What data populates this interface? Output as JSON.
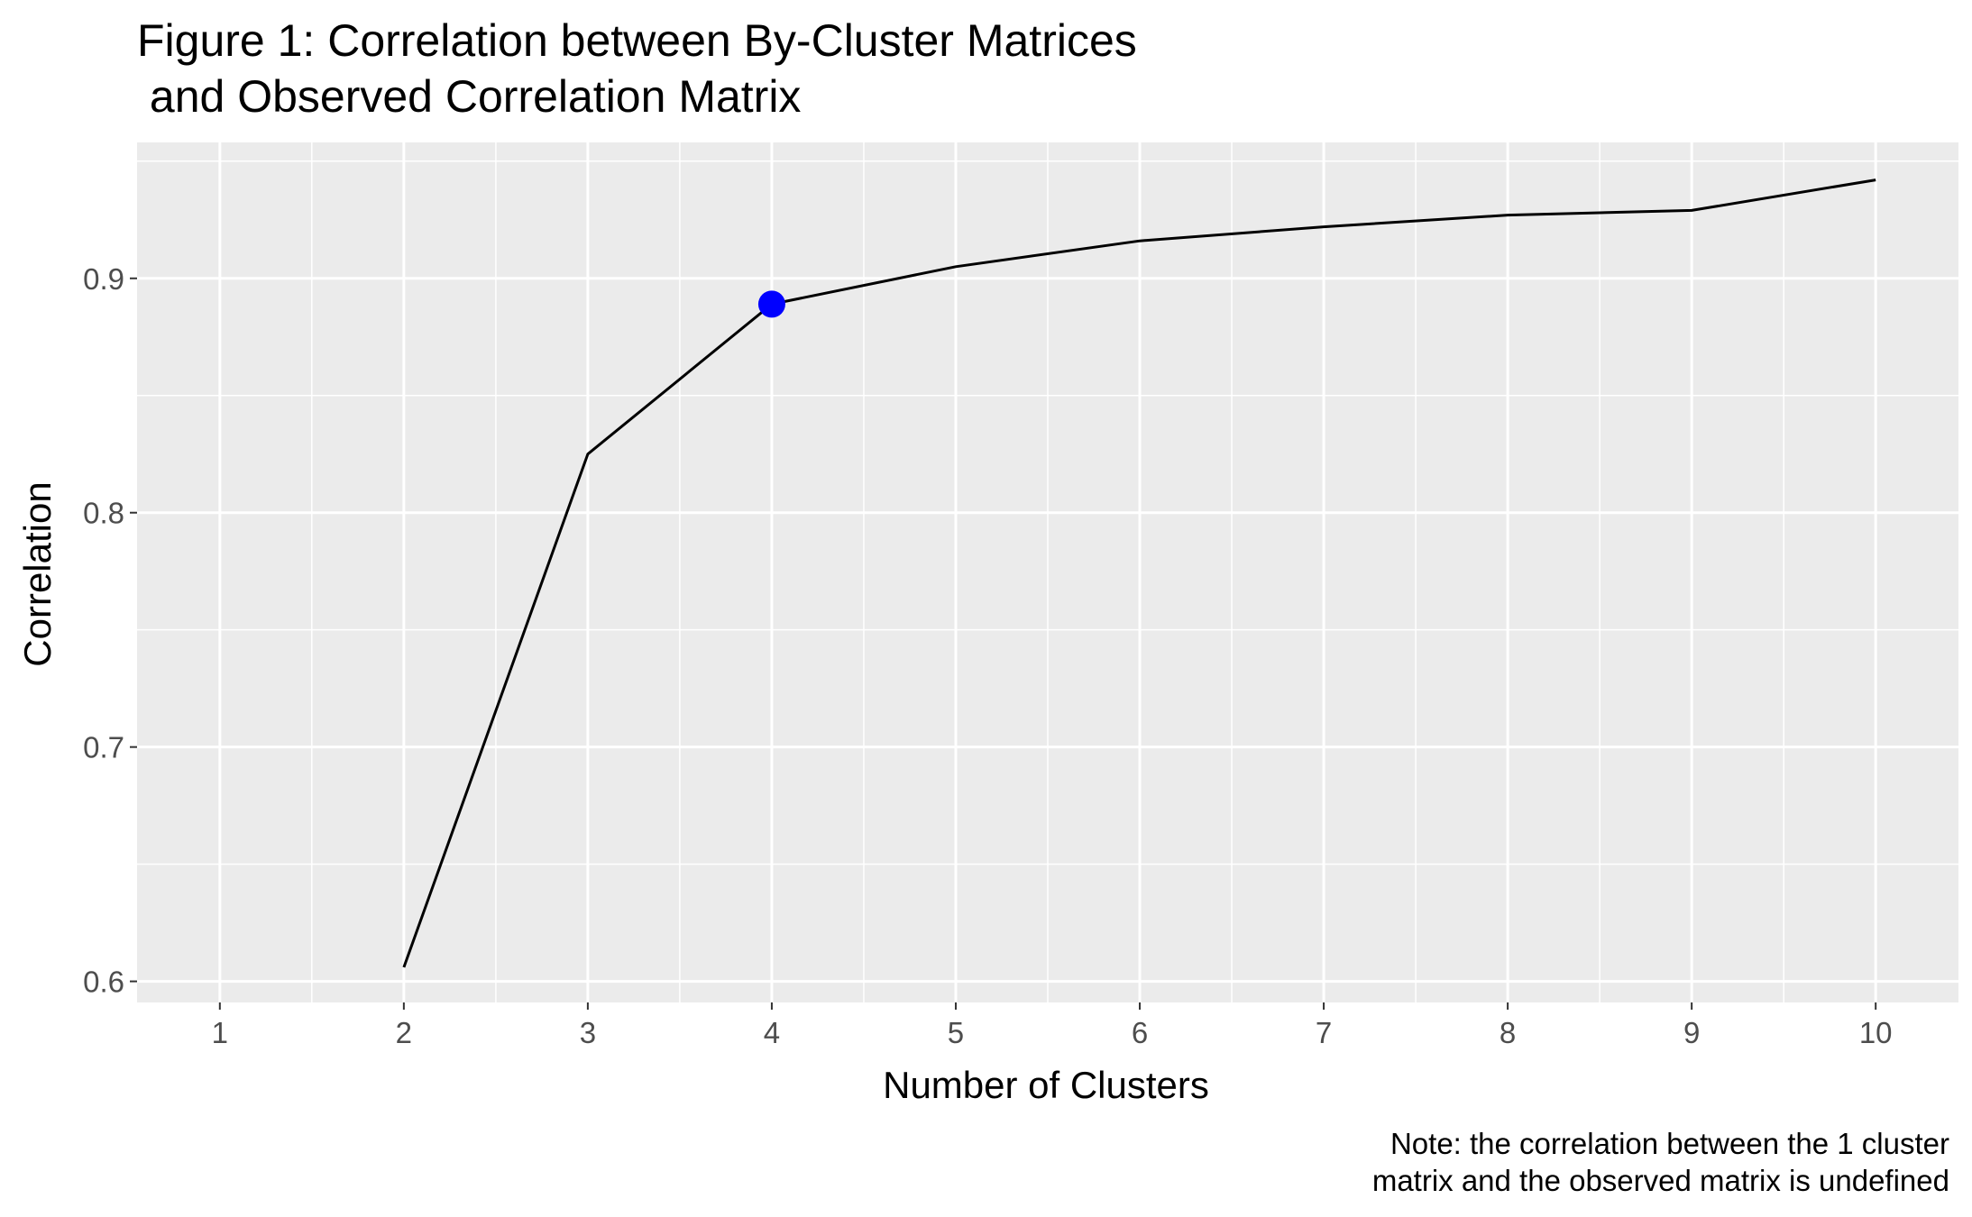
{
  "chart_data": {
    "type": "line",
    "title": [
      "Figure 1: Correlation between By-Cluster Matrices",
      " and Observed Correlation Matrix"
    ],
    "xlabel": "Number of Clusters",
    "ylabel": "Correlation",
    "caption": [
      "Note: the correlation between the 1 cluster",
      "matrix and the observed matrix is undefined"
    ],
    "x_ticks": [
      "1",
      "2",
      "3",
      "4",
      "5",
      "6",
      "7",
      "8",
      "9",
      "10"
    ],
    "y_ticks": [
      "0.6",
      "0.7",
      "0.8",
      "0.9"
    ],
    "xlim": [
      0.55,
      10.45
    ],
    "ylim": [
      0.591,
      0.958
    ],
    "series": [
      {
        "x": [
          2,
          3,
          4,
          5,
          6,
          7,
          8,
          9,
          10
        ],
        "y": [
          0.606,
          0.825,
          0.889,
          0.905,
          0.916,
          0.922,
          0.927,
          0.929,
          0.942
        ],
        "color": "#000000"
      }
    ],
    "highlight": {
      "x": 4,
      "y": 0.889,
      "color": "#0000ff"
    },
    "panel_background": "#ebebeb",
    "grid": true
  }
}
